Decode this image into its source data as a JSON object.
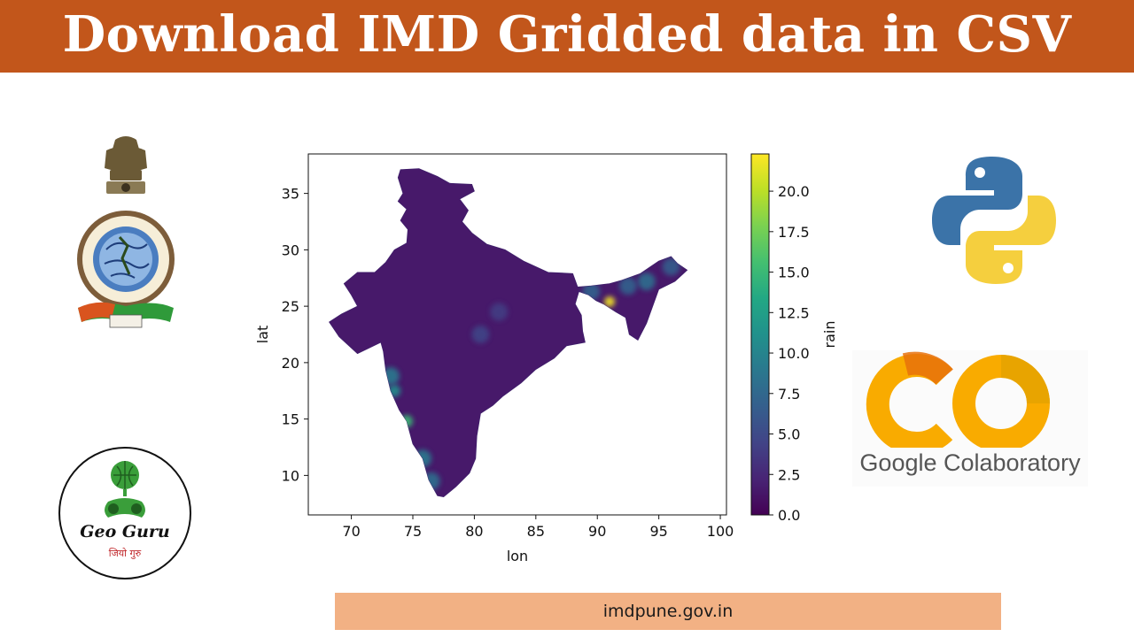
{
  "header": {
    "title": "Download IMD Gridded data in CSV"
  },
  "footer": {
    "url": "imdpune.gov.in"
  },
  "logos": {
    "imd": {
      "name": "India Meteorological Department emblem",
      "icon": "imd-emblem-icon"
    },
    "python": {
      "icon": "python-icon"
    },
    "colab": {
      "label": "Google Colaboratory",
      "icon": "colab-icon"
    },
    "geoguru": {
      "label": "Geo Guru",
      "tagline": "जियो गुरु",
      "icon": "geoguru-icon"
    }
  },
  "chart_data": {
    "type": "heatmap",
    "xlabel": "lon",
    "ylabel": "lat",
    "colorbar_label": "rain",
    "colormap": "viridis",
    "xlim": [
      66.5,
      100.5
    ],
    "ylim": [
      6.5,
      38.5
    ],
    "xticks": [
      "70",
      "75",
      "80",
      "85",
      "90",
      "95",
      "100"
    ],
    "yticks": [
      "10",
      "15",
      "20",
      "25",
      "30",
      "35"
    ],
    "xtick_values": [
      70,
      75,
      80,
      85,
      90,
      95,
      100
    ],
    "ytick_values": [
      10,
      15,
      20,
      25,
      30,
      35
    ],
    "colorbar_range": [
      0,
      22.3
    ],
    "colorbar_ticks": [
      "0.0",
      "2.5",
      "5.0",
      "7.5",
      "10.0",
      "12.5",
      "15.0",
      "17.5",
      "20.0"
    ],
    "colorbar_tick_values": [
      0,
      2.5,
      5,
      7.5,
      10,
      12.5,
      15,
      17.5,
      20
    ],
    "region_outline_lonlat": [
      [
        74.0,
        37.1
      ],
      [
        75.5,
        37.2
      ],
      [
        77.0,
        36.5
      ],
      [
        78.0,
        35.9
      ],
      [
        79.8,
        35.8
      ],
      [
        80.0,
        35.2
      ],
      [
        78.8,
        34.5
      ],
      [
        79.5,
        33.5
      ],
      [
        79.0,
        32.5
      ],
      [
        79.8,
        31.5
      ],
      [
        81.0,
        30.5
      ],
      [
        82.5,
        30.0
      ],
      [
        84.0,
        29.0
      ],
      [
        86.0,
        28.0
      ],
      [
        88.0,
        27.9
      ],
      [
        88.4,
        26.7
      ],
      [
        89.5,
        26.8
      ],
      [
        91.0,
        27.0
      ],
      [
        92.0,
        27.3
      ],
      [
        93.5,
        27.9
      ],
      [
        95.0,
        29.0
      ],
      [
        96.0,
        29.4
      ],
      [
        96.5,
        28.8
      ],
      [
        97.3,
        28.2
      ],
      [
        96.3,
        27.2
      ],
      [
        95.0,
        26.5
      ],
      [
        94.5,
        25.0
      ],
      [
        94.0,
        23.5
      ],
      [
        93.3,
        22.0
      ],
      [
        92.6,
        22.5
      ],
      [
        92.3,
        24.0
      ],
      [
        91.5,
        24.5
      ],
      [
        90.5,
        25.2
      ],
      [
        89.9,
        25.5
      ],
      [
        89.3,
        26.0
      ],
      [
        88.5,
        26.3
      ],
      [
        88.2,
        25.2
      ],
      [
        88.7,
        24.2
      ],
      [
        88.8,
        22.8
      ],
      [
        89.0,
        21.8
      ],
      [
        87.5,
        21.5
      ],
      [
        86.5,
        20.4
      ],
      [
        85.0,
        19.4
      ],
      [
        83.8,
        18.2
      ],
      [
        82.3,
        17.0
      ],
      [
        81.5,
        16.2
      ],
      [
        80.5,
        15.5
      ],
      [
        80.2,
        13.5
      ],
      [
        80.1,
        11.5
      ],
      [
        79.6,
        10.2
      ],
      [
        78.5,
        9.0
      ],
      [
        77.5,
        8.1
      ],
      [
        77.0,
        8.2
      ],
      [
        76.3,
        9.6
      ],
      [
        75.8,
        11.5
      ],
      [
        75.0,
        12.8
      ],
      [
        74.5,
        14.8
      ],
      [
        73.9,
        15.8
      ],
      [
        73.2,
        17.5
      ],
      [
        72.8,
        19.3
      ],
      [
        72.6,
        21.0
      ],
      [
        72.4,
        21.8
      ],
      [
        70.5,
        20.8
      ],
      [
        69.0,
        22.3
      ],
      [
        68.2,
        23.6
      ],
      [
        69.2,
        24.3
      ],
      [
        70.5,
        25.0
      ],
      [
        70.0,
        26.0
      ],
      [
        69.4,
        27.0
      ],
      [
        70.5,
        28.0
      ],
      [
        71.9,
        28.0
      ],
      [
        72.8,
        28.9
      ],
      [
        73.5,
        30.0
      ],
      [
        74.5,
        30.6
      ],
      [
        74.6,
        31.8
      ],
      [
        74.0,
        32.6
      ],
      [
        74.5,
        33.6
      ],
      [
        73.8,
        34.3
      ],
      [
        74.2,
        35.0
      ],
      [
        73.8,
        36.4
      ]
    ],
    "highlights": [
      {
        "lon": 91.0,
        "lat": 25.4,
        "value": 22.0
      },
      {
        "lon": 74.5,
        "lat": 14.8,
        "value": 15.0
      },
      {
        "lon": 73.5,
        "lat": 17.5,
        "value": 11.0
      },
      {
        "lon": 73.2,
        "lat": 18.8,
        "value": 9.0
      },
      {
        "lon": 75.8,
        "lat": 11.5,
        "value": 9.0
      },
      {
        "lon": 76.5,
        "lat": 9.5,
        "value": 8.0
      },
      {
        "lon": 94.0,
        "lat": 27.2,
        "value": 8.0
      },
      {
        "lon": 92.5,
        "lat": 26.8,
        "value": 7.0
      },
      {
        "lon": 89.5,
        "lat": 26.3,
        "value": 7.0
      },
      {
        "lon": 96.0,
        "lat": 28.5,
        "value": 6.5
      },
      {
        "lon": 80.5,
        "lat": 22.5,
        "value": 4.5
      },
      {
        "lon": 82.0,
        "lat": 24.5,
        "value": 4.0
      }
    ],
    "background_value": 1.5
  }
}
